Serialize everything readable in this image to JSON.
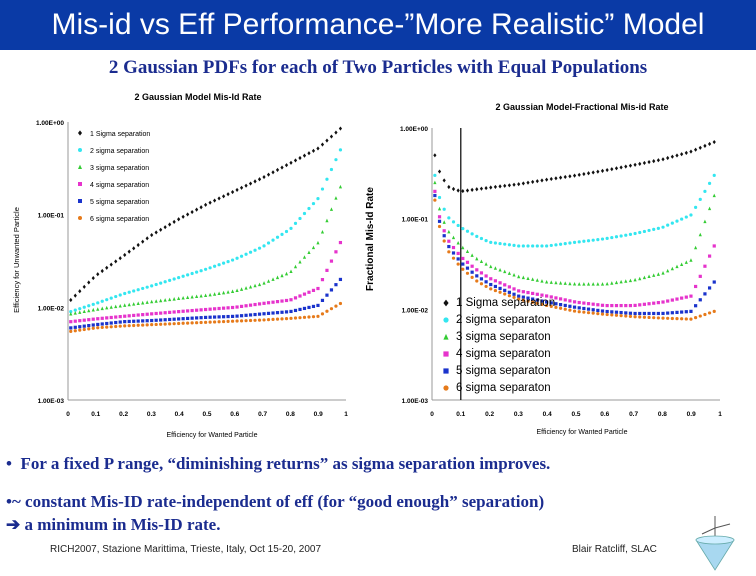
{
  "header": {
    "title": "Mis-id vs Eff Performance-”More Realistic” Model",
    "subtitle": "2 Gaussian PDFs for each of Two  Particles with Equal Populations"
  },
  "colors": {
    "title_bg": "#0a3aa6",
    "text_blue": "#1b2c8f",
    "series": [
      "#111111",
      "#33e6f0",
      "#33cc33",
      "#e633cc",
      "#1a33cc",
      "#e67a1a"
    ]
  },
  "chart_data": [
    {
      "type": "scatter",
      "title": "2 Gaussian Model Mis-Id Rate",
      "xlabel": "Efficiency for Wanted Particle",
      "ylabel": "Efficiency for Unwanted Particle",
      "x_ticks": [
        "0",
        "0.1",
        "0.2",
        "0.3",
        "0.4",
        "0.5",
        "0.6",
        "0.7",
        "0.8",
        "0.9",
        "1"
      ],
      "y_ticks": [
        "1.00E+00",
        "1.00E-01",
        "1.00E-02",
        "1.00E-03"
      ],
      "xlim": [
        0,
        1
      ],
      "ylim": [
        0.001,
        1
      ],
      "yscale": "log",
      "legend_position": "top-left",
      "legend": [
        "1 Sigma separation",
        "2 sigma separation",
        "3 sigma separation",
        "4 sigma separation",
        "5 sigma separation",
        "6 sigma separation"
      ],
      "series": [
        {
          "name": "1 Sigma separation",
          "x": [
            0.01,
            0.1,
            0.2,
            0.3,
            0.4,
            0.5,
            0.6,
            0.7,
            0.8,
            0.9,
            0.98
          ],
          "y": [
            0.012,
            0.022,
            0.036,
            0.06,
            0.09,
            0.13,
            0.18,
            0.25,
            0.36,
            0.52,
            0.85
          ]
        },
        {
          "name": "2 sigma separation",
          "x": [
            0.01,
            0.1,
            0.2,
            0.3,
            0.4,
            0.5,
            0.6,
            0.7,
            0.8,
            0.9,
            0.98
          ],
          "y": [
            0.009,
            0.011,
            0.014,
            0.017,
            0.021,
            0.026,
            0.033,
            0.045,
            0.07,
            0.15,
            0.5
          ]
        },
        {
          "name": "3 sigma separation",
          "x": [
            0.01,
            0.1,
            0.2,
            0.3,
            0.4,
            0.5,
            0.6,
            0.7,
            0.8,
            0.9,
            0.98
          ],
          "y": [
            0.0085,
            0.0095,
            0.0105,
            0.0115,
            0.0125,
            0.0135,
            0.015,
            0.018,
            0.024,
            0.05,
            0.2
          ]
        },
        {
          "name": "4 sigma separation",
          "x": [
            0.01,
            0.1,
            0.2,
            0.3,
            0.4,
            0.5,
            0.6,
            0.7,
            0.8,
            0.9,
            0.98
          ],
          "y": [
            0.007,
            0.0075,
            0.008,
            0.0085,
            0.009,
            0.0095,
            0.01,
            0.011,
            0.012,
            0.016,
            0.05
          ]
        },
        {
          "name": "5 sigma separation",
          "x": [
            0.01,
            0.1,
            0.2,
            0.3,
            0.4,
            0.5,
            0.6,
            0.7,
            0.8,
            0.9,
            0.98
          ],
          "y": [
            0.006,
            0.0065,
            0.007,
            0.0072,
            0.0075,
            0.0078,
            0.008,
            0.0085,
            0.009,
            0.0105,
            0.02
          ]
        },
        {
          "name": "6 sigma separation",
          "x": [
            0.01,
            0.1,
            0.2,
            0.3,
            0.4,
            0.5,
            0.6,
            0.7,
            0.8,
            0.9,
            0.98
          ],
          "y": [
            0.0055,
            0.006,
            0.0063,
            0.0065,
            0.0067,
            0.0069,
            0.0071,
            0.0073,
            0.0076,
            0.008,
            0.011
          ]
        }
      ]
    },
    {
      "type": "scatter",
      "title": "2 Gaussian Model-Fractional Mis-id Rate",
      "xlabel": "Efficiency for Wanted Particle",
      "ylabel": "Fractional Mis-Id Rate",
      "x_ticks": [
        "0",
        "0.1",
        "0.2",
        "0.3",
        "0.4",
        "0.5",
        "0.6",
        "0.7",
        "0.8",
        "0.9",
        "1"
      ],
      "y_ticks": [
        "1.00E+00",
        "1.00E-01",
        "1.00E-02",
        "1.00E-03"
      ],
      "xlim": [
        0,
        1
      ],
      "ylim": [
        0.001,
        1
      ],
      "yscale": "log",
      "vertical_marker_x": 0.1,
      "legend_position": "bottom-right",
      "legend": [
        "1 Sigma separation",
        "2 sigma separaton",
        "3 sigma separaton",
        "4 sigma separaton",
        "5 sigma separaton",
        "6 sigma separaton"
      ],
      "series": [
        {
          "name": "1 Sigma separation",
          "x": [
            0.01,
            0.03,
            0.06,
            0.1,
            0.15,
            0.2,
            0.3,
            0.4,
            0.5,
            0.6,
            0.7,
            0.8,
            0.9,
            0.98
          ],
          "y": [
            0.5,
            0.3,
            0.22,
            0.2,
            0.21,
            0.22,
            0.24,
            0.27,
            0.3,
            0.34,
            0.39,
            0.45,
            0.55,
            0.7
          ]
        },
        {
          "name": "2 sigma separaton",
          "x": [
            0.01,
            0.03,
            0.06,
            0.1,
            0.15,
            0.2,
            0.3,
            0.4,
            0.5,
            0.6,
            0.7,
            0.8,
            0.9,
            0.98
          ],
          "y": [
            0.3,
            0.15,
            0.1,
            0.08,
            0.065,
            0.055,
            0.05,
            0.05,
            0.055,
            0.06,
            0.068,
            0.08,
            0.11,
            0.3
          ]
        },
        {
          "name": "3 sigma separaton",
          "x": [
            0.01,
            0.03,
            0.06,
            0.1,
            0.15,
            0.2,
            0.3,
            0.4,
            0.5,
            0.6,
            0.7,
            0.8,
            0.9,
            0.98
          ],
          "y": [
            0.25,
            0.11,
            0.07,
            0.05,
            0.037,
            0.03,
            0.023,
            0.02,
            0.019,
            0.019,
            0.021,
            0.025,
            0.035,
            0.18
          ]
        },
        {
          "name": "4 sigma separaton",
          "x": [
            0.01,
            0.03,
            0.06,
            0.1,
            0.15,
            0.2,
            0.3,
            0.4,
            0.5,
            0.6,
            0.7,
            0.8,
            0.9,
            0.98
          ],
          "y": [
            0.2,
            0.09,
            0.055,
            0.038,
            0.028,
            0.022,
            0.016,
            0.014,
            0.012,
            0.011,
            0.011,
            0.012,
            0.014,
            0.05
          ]
        },
        {
          "name": "5 sigma separaton",
          "x": [
            0.01,
            0.03,
            0.06,
            0.1,
            0.15,
            0.2,
            0.3,
            0.4,
            0.5,
            0.6,
            0.7,
            0.8,
            0.9,
            0.98
          ],
          "y": [
            0.18,
            0.08,
            0.048,
            0.033,
            0.024,
            0.019,
            0.014,
            0.012,
            0.0105,
            0.0095,
            0.009,
            0.009,
            0.0095,
            0.02
          ]
        },
        {
          "name": "6 sigma separaton",
          "x": [
            0.01,
            0.03,
            0.06,
            0.1,
            0.15,
            0.2,
            0.3,
            0.4,
            0.5,
            0.6,
            0.7,
            0.8,
            0.9,
            0.98
          ],
          "y": [
            0.16,
            0.07,
            0.042,
            0.029,
            0.021,
            0.017,
            0.013,
            0.011,
            0.0095,
            0.0088,
            0.0083,
            0.008,
            0.0078,
            0.0095
          ]
        }
      ]
    }
  ],
  "bullets": {
    "b1": "For a fixed P range, “diminishing returns” as sigma separation improves.",
    "b2": "~ constant Mis-ID rate-independent of eff (for “good enough” separation)",
    "b3": "a minimum in Mis-ID rate."
  },
  "footer": {
    "left": "RICH2007, Stazione Marittima, Trieste, Italy, Oct 15-20, 2007",
    "right": "Blair Ratcliff, SLAC"
  }
}
